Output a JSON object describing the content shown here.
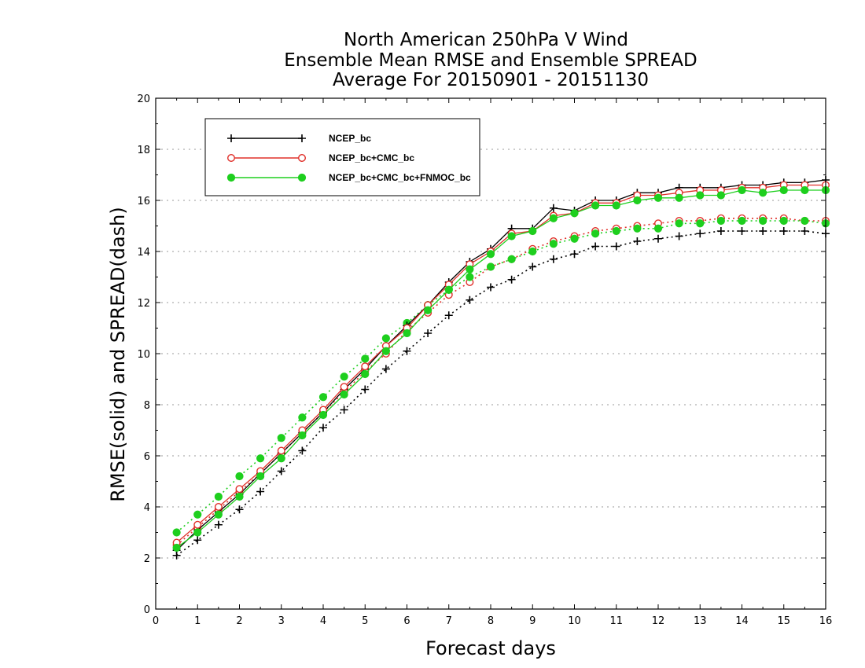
{
  "chart_data": {
    "type": "line",
    "title": [
      "North American 250hPa V Wind",
      "Ensemble Mean RMSE and Ensemble SPREAD",
      "Average For 20150901 - 20151130"
    ],
    "xlabel": "Forecast days",
    "ylabel": "RMSE(solid) and SPREAD(dash)",
    "xlim": [
      0,
      16
    ],
    "ylim": [
      0,
      20
    ],
    "xticks": [
      "0",
      "1",
      "2",
      "3",
      "4",
      "5",
      "6",
      "7",
      "8",
      "9",
      "10",
      "11",
      "12",
      "13",
      "14",
      "15",
      "16"
    ],
    "yticks": [
      "0",
      "2",
      "4",
      "6",
      "8",
      "10",
      "12",
      "14",
      "16",
      "18",
      "20"
    ],
    "grid": "horizontal dotted",
    "legend_position": "top-left",
    "x": [
      0.5,
      1,
      1.5,
      2,
      2.5,
      3,
      3.5,
      4,
      4.5,
      5,
      5.5,
      6,
      6.5,
      7,
      7.5,
      8,
      8.5,
      9,
      9.5,
      10,
      10.5,
      11,
      11.5,
      12,
      12.5,
      13,
      13.5,
      14,
      14.5,
      15,
      15.5,
      16
    ],
    "series": [
      {
        "name": "NCEP_bc",
        "metric": "RMSE",
        "style": "solid",
        "color": "#000000",
        "marker": "plus",
        "values": [
          2.3,
          3.1,
          3.8,
          4.5,
          5.3,
          6.1,
          6.9,
          7.7,
          8.6,
          9.4,
          10.3,
          11.1,
          11.9,
          12.8,
          13.6,
          14.1,
          14.9,
          14.9,
          15.7,
          15.6,
          16.0,
          16.0,
          16.3,
          16.3,
          16.5,
          16.5,
          16.5,
          16.6,
          16.6,
          16.7,
          16.7,
          16.8
        ]
      },
      {
        "name": "NCEP_bc+CMC_bc",
        "metric": "RMSE",
        "style": "solid",
        "color": "#e0302a",
        "marker": "open-circle",
        "values": [
          2.6,
          3.3,
          4.0,
          4.7,
          5.4,
          6.2,
          7.0,
          7.8,
          8.7,
          9.5,
          10.3,
          11.0,
          11.9,
          12.7,
          13.5,
          14.0,
          14.7,
          14.8,
          15.4,
          15.5,
          15.9,
          15.9,
          16.2,
          16.2,
          16.3,
          16.4,
          16.4,
          16.5,
          16.5,
          16.6,
          16.6,
          16.6
        ]
      },
      {
        "name": "NCEP_bc+CMC_bc+FNMOC_bc",
        "metric": "RMSE",
        "style": "solid",
        "color": "#1ecf1e",
        "marker": "filled-circle",
        "values": [
          2.4,
          3.0,
          3.7,
          4.4,
          5.2,
          5.9,
          6.8,
          7.6,
          8.4,
          9.2,
          10.1,
          10.8,
          11.7,
          12.5,
          13.3,
          13.9,
          14.6,
          14.8,
          15.3,
          15.5,
          15.8,
          15.8,
          16.0,
          16.1,
          16.1,
          16.2,
          16.2,
          16.4,
          16.3,
          16.4,
          16.4,
          16.4
        ]
      },
      {
        "name": "NCEP_bc",
        "metric": "SPREAD",
        "style": "dash",
        "color": "#000000",
        "marker": "plus",
        "values": [
          2.1,
          2.7,
          3.3,
          3.9,
          4.6,
          5.4,
          6.2,
          7.1,
          7.8,
          8.6,
          9.4,
          10.1,
          10.8,
          11.5,
          12.1,
          12.6,
          12.9,
          13.4,
          13.7,
          13.9,
          14.2,
          14.2,
          14.4,
          14.5,
          14.6,
          14.7,
          14.8,
          14.8,
          14.8,
          14.8,
          14.8,
          14.7
        ]
      },
      {
        "name": "NCEP_bc+CMC_bc",
        "metric": "SPREAD",
        "style": "dash",
        "color": "#e0302a",
        "marker": "open-circle",
        "values": [
          2.5,
          3.2,
          3.9,
          4.6,
          5.3,
          6.1,
          6.9,
          7.7,
          8.5,
          9.3,
          10.0,
          10.9,
          11.6,
          12.3,
          12.8,
          13.4,
          13.7,
          14.1,
          14.4,
          14.6,
          14.8,
          14.9,
          15.0,
          15.1,
          15.2,
          15.2,
          15.3,
          15.3,
          15.3,
          15.3,
          15.2,
          15.2
        ]
      },
      {
        "name": "NCEP_bc+CMC_bc+FNMOC_bc",
        "metric": "SPREAD",
        "style": "dash",
        "color": "#1ecf1e",
        "marker": "filled-circle",
        "values": [
          3.0,
          3.7,
          4.4,
          5.2,
          5.9,
          6.7,
          7.5,
          8.3,
          9.1,
          9.8,
          10.6,
          11.2,
          11.9,
          12.5,
          13.0,
          13.4,
          13.7,
          14.0,
          14.3,
          14.5,
          14.7,
          14.8,
          14.9,
          14.9,
          15.1,
          15.1,
          15.2,
          15.2,
          15.2,
          15.2,
          15.2,
          15.1
        ]
      }
    ],
    "legend": [
      {
        "label": "NCEP_bc",
        "color": "#000000",
        "marker": "plus"
      },
      {
        "label": "NCEP_bc+CMC_bc",
        "color": "#e0302a",
        "marker": "open-circle"
      },
      {
        "label": "NCEP_bc+CMC_bc+FNMOC_bc",
        "color": "#1ecf1e",
        "marker": "filled-circle"
      }
    ]
  }
}
